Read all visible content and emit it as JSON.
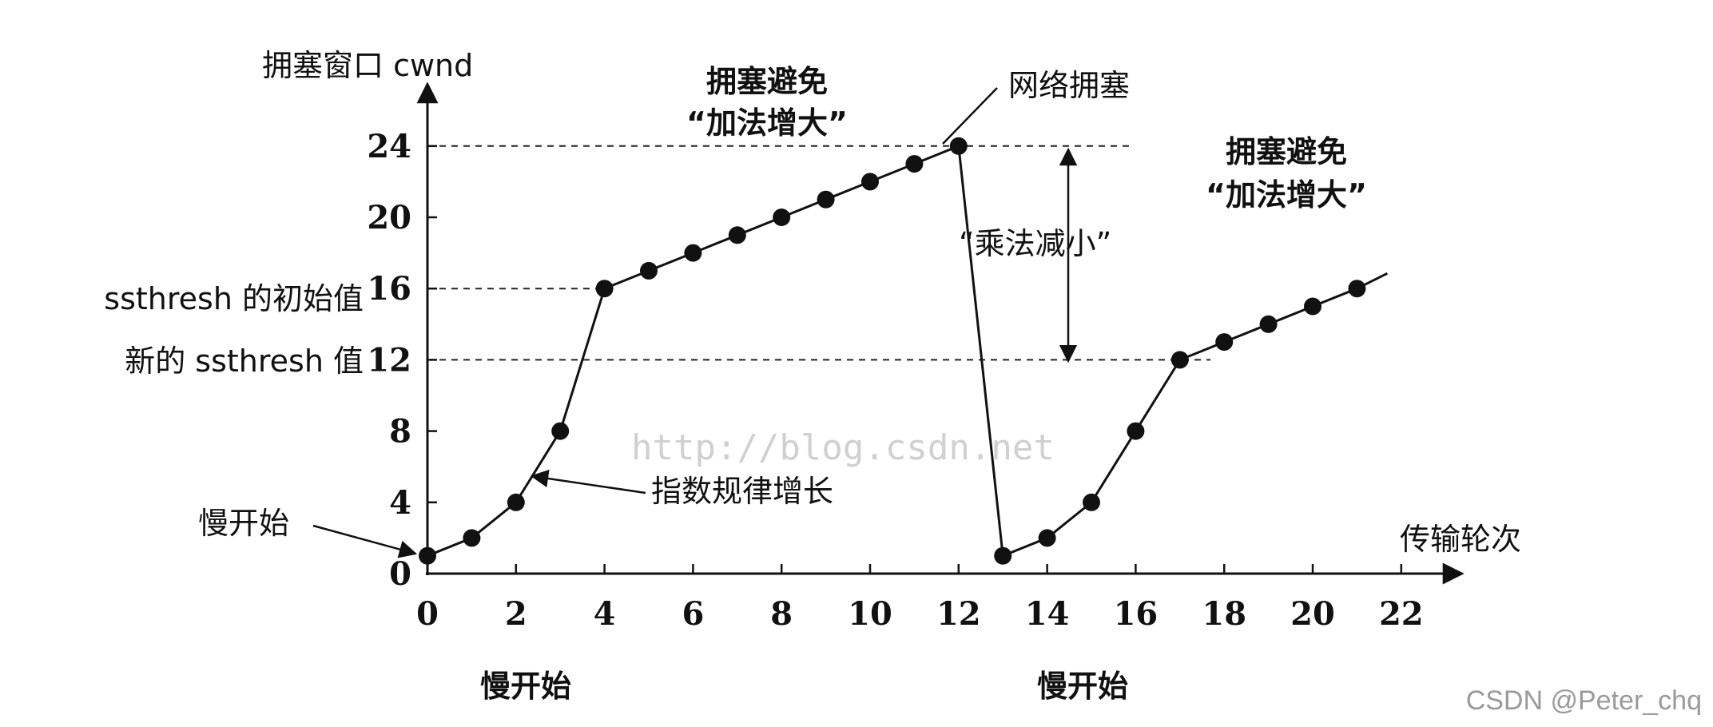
{
  "chart_data": {
    "type": "line",
    "ylabel": "拥塞窗口 cwnd",
    "xlabel": "传输轮次",
    "xlim": [
      0,
      23
    ],
    "ylim": [
      0,
      28
    ],
    "xticks": [
      "0",
      "2",
      "4",
      "6",
      "8",
      "10",
      "12",
      "14",
      "16",
      "18",
      "20",
      "22"
    ],
    "yticks": [
      "0",
      "4",
      "8",
      "12",
      "16",
      "20",
      "24"
    ],
    "series": [
      {
        "points": [
          [
            0,
            1
          ],
          [
            1,
            2
          ],
          [
            2,
            4
          ],
          [
            3,
            8
          ],
          [
            4,
            16
          ],
          [
            5,
            17
          ],
          [
            6,
            18
          ],
          [
            7,
            19
          ],
          [
            8,
            20
          ],
          [
            9,
            21
          ],
          [
            10,
            22
          ],
          [
            11,
            23
          ],
          [
            12,
            24
          ],
          [
            13,
            1
          ],
          [
            14,
            2
          ],
          [
            15,
            4
          ],
          [
            16,
            8
          ],
          [
            17,
            12
          ],
          [
            18,
            13
          ],
          [
            19,
            14
          ],
          [
            20,
            15
          ],
          [
            21,
            16
          ]
        ]
      }
    ],
    "thresholds": {
      "initial_ssthresh": {
        "value": 16,
        "label": "ssthresh 的初始值"
      },
      "new_ssthresh": {
        "value": 12,
        "label": "新的 ssthresh 值"
      },
      "peak": {
        "value": 24
      }
    },
    "annotations": {
      "slow_start_point": "慢开始",
      "exponential": "指数规律增长",
      "congestion": "网络拥塞",
      "ca1_line1": "拥塞避免",
      "ca1_line2": "“加法增大”",
      "ca2_line1": "拥塞避免",
      "ca2_line2": "“加法增大”",
      "multiplicative": "“乘法减小”",
      "bottom_slow_start_1": "慢开始",
      "bottom_slow_start_2": "慢开始"
    },
    "grid": false,
    "legend": "none"
  },
  "watermark": "http://blog.csdn.net",
  "credit": "CSDN @Peter_chq"
}
